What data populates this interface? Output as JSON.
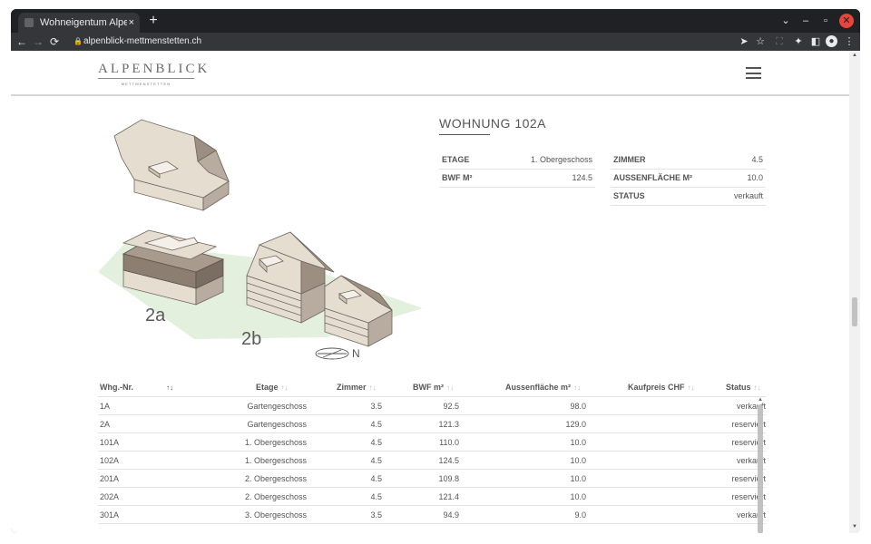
{
  "browser": {
    "tab_title": "Wohneigentum Alpenblic",
    "tab_close": "×",
    "new_tab": "+",
    "url": "alpenblick-mettmenstetten.ch",
    "win_down": "⌄",
    "win_min": "–",
    "win_max": "▫",
    "win_close": "✕"
  },
  "site": {
    "logo_main": "ALPENBLICK",
    "logo_sub": "METTMENSTETTEN"
  },
  "plan": {
    "label_2a": "2a",
    "label_2b": "2b",
    "north": "N"
  },
  "unit": {
    "title": "WOHNUNG 102A",
    "left": [
      {
        "key": "ETAGE",
        "value": "1. Obergeschoss"
      },
      {
        "key": "BWF M²",
        "value": "124.5"
      }
    ],
    "right": [
      {
        "key": "ZIMMER",
        "value": "4.5"
      },
      {
        "key": "AUSSENFLÄCHE M²",
        "value": "10.0"
      },
      {
        "key": "STATUS",
        "value": "verkauft"
      }
    ]
  },
  "list": {
    "columns": [
      "Whg.-Nr.",
      "Etage",
      "Zimmer",
      "BWF m²",
      "Aussenfläche m²",
      "Kaufpreis CHF",
      "Status"
    ],
    "sort_icon": "↑↓",
    "rows": [
      {
        "nr": "1A",
        "etage": "Gartengeschoss",
        "zimmer": "3.5",
        "bwf": "92.5",
        "aussen": "98.0",
        "preis": "",
        "status": "verkauft"
      },
      {
        "nr": "2A",
        "etage": "Gartengeschoss",
        "zimmer": "4.5",
        "bwf": "121.3",
        "aussen": "129.0",
        "preis": "",
        "status": "reserviert"
      },
      {
        "nr": "101A",
        "etage": "1. Obergeschoss",
        "zimmer": "4.5",
        "bwf": "110.0",
        "aussen": "10.0",
        "preis": "",
        "status": "reserviert"
      },
      {
        "nr": "102A",
        "etage": "1. Obergeschoss",
        "zimmer": "4.5",
        "bwf": "124.5",
        "aussen": "10.0",
        "preis": "",
        "status": "verkauft"
      },
      {
        "nr": "201A",
        "etage": "2. Obergeschoss",
        "zimmer": "4.5",
        "bwf": "109.8",
        "aussen": "10.0",
        "preis": "",
        "status": "reserviert"
      },
      {
        "nr": "202A",
        "etage": "2. Obergeschoss",
        "zimmer": "4.5",
        "bwf": "121.4",
        "aussen": "10.0",
        "preis": "",
        "status": "reserviert"
      },
      {
        "nr": "301A",
        "etage": "3. Obergeschoss",
        "zimmer": "3.5",
        "bwf": "94.9",
        "aussen": "9.0",
        "preis": "",
        "status": "verkauft"
      }
    ]
  },
  "colors": {
    "chrome": "#202124",
    "toolbar": "#35363a",
    "ground": "#e3f0dd",
    "building": "#e6ddd1",
    "building_dark": "#9c8f82",
    "selected": "#8c7f72",
    "text": "#555555"
  }
}
